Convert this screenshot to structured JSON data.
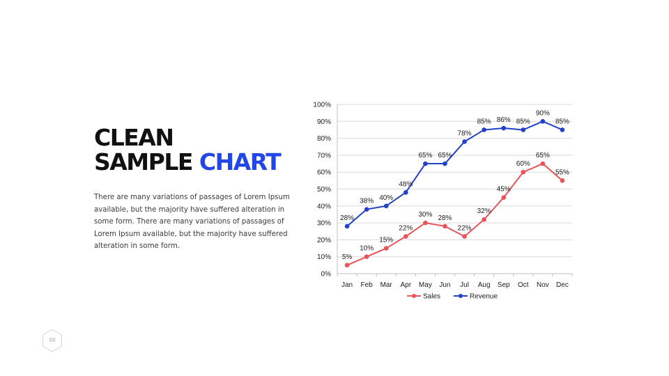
{
  "slide": {
    "title_line1": "CLEAN",
    "title_line2_a": "SAMPLE",
    "title_line2_b": "CHART",
    "body": "There are many variations of passages of Lorem Ipsum available, but the majority have suffered alteration in some form. There are many variations of passages of Lorem Ipsum available, but the majority have suffered alteration in some form.",
    "page_number": "88"
  },
  "colors": {
    "accent": "#2347e6",
    "sales": "#e8545a",
    "revenue": "#2141c9",
    "grid": "#d9d9d9"
  },
  "chart_data": {
    "type": "line",
    "categories": [
      "Jan",
      "Feb",
      "Mar",
      "Apr",
      "May",
      "Jun",
      "Jul",
      "Aug",
      "Sep",
      "Oct",
      "Nov",
      "Dec"
    ],
    "y_ticks": [
      "0%",
      "10%",
      "20%",
      "30%",
      "40%",
      "50%",
      "60%",
      "70%",
      "80%",
      "90%",
      "100%"
    ],
    "ylim": [
      0,
      100
    ],
    "grid": true,
    "legend_position": "bottom",
    "series": [
      {
        "name": "Sales",
        "color": "#e8545a",
        "values": [
          5,
          10,
          15,
          22,
          30,
          28,
          22,
          32,
          45,
          60,
          65,
          55
        ]
      },
      {
        "name": "Revenue",
        "color": "#2141c9",
        "values": [
          28,
          38,
          40,
          48,
          65,
          65,
          78,
          85,
          86,
          85,
          90,
          85
        ]
      }
    ]
  }
}
